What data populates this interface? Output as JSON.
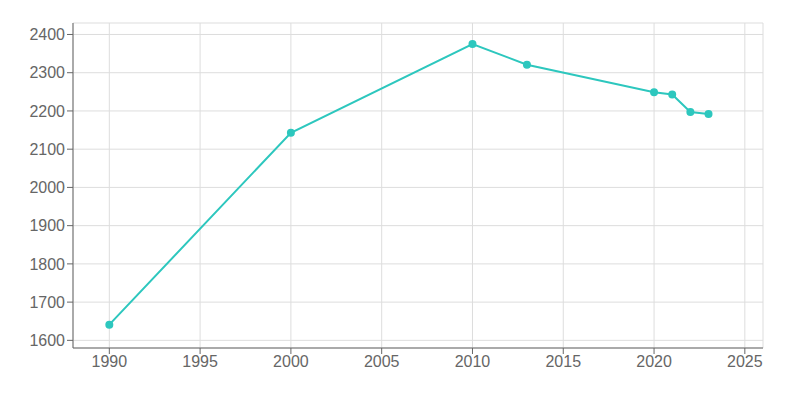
{
  "chart_data": {
    "type": "line",
    "x": [
      1990,
      2000,
      2010,
      2013,
      2020,
      2021,
      2022,
      2023
    ],
    "values": [
      1641,
      2143,
      2375,
      2321,
      2249,
      2243,
      2197,
      2192
    ],
    "color": "#2dc7be",
    "marker": "circle",
    "xlim": [
      1988,
      2026
    ],
    "ylim": [
      1580,
      2430
    ],
    "xticks": [
      1990,
      1995,
      2000,
      2005,
      2010,
      2015,
      2020,
      2025
    ],
    "yticks": [
      1600,
      1700,
      1800,
      1900,
      2000,
      2100,
      2200,
      2300,
      2400
    ],
    "grid": true
  }
}
